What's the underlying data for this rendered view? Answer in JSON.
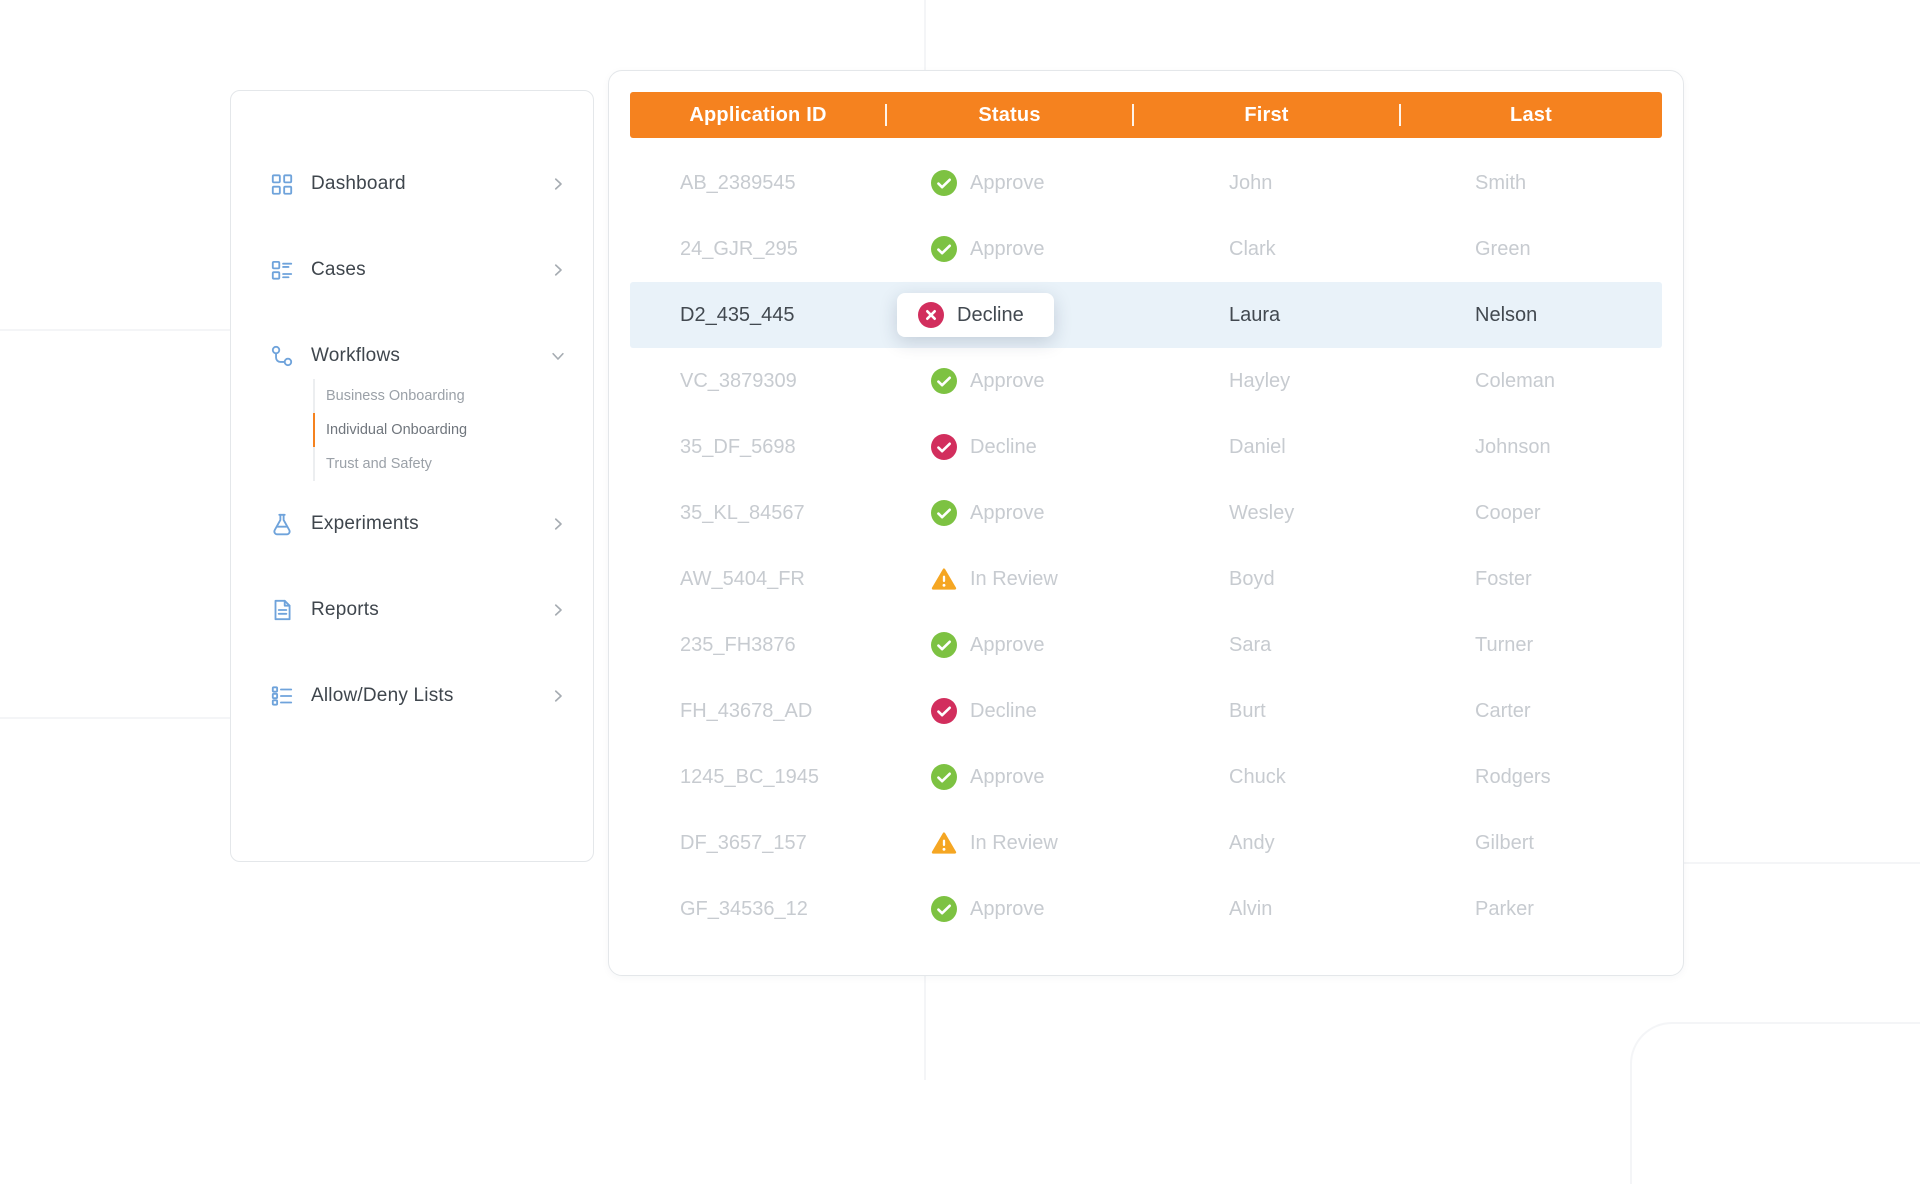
{
  "sidebar": {
    "items": [
      {
        "label": "Dashboard",
        "icon": "dashboard-icon",
        "chevron": "right"
      },
      {
        "label": "Cases",
        "icon": "cases-icon",
        "chevron": "right"
      },
      {
        "label": "Workflows",
        "icon": "workflows-icon",
        "chevron": "down",
        "expanded": true,
        "children": [
          {
            "label": "Business Onboarding",
            "active": false
          },
          {
            "label": "Individual Onboarding",
            "active": true
          },
          {
            "label": "Trust and Safety",
            "active": false
          }
        ]
      },
      {
        "label": "Experiments",
        "icon": "experiments-icon",
        "chevron": "right"
      },
      {
        "label": "Reports",
        "icon": "reports-icon",
        "chevron": "right"
      },
      {
        "label": "Allow/Deny Lists",
        "icon": "allow-deny-icon",
        "chevron": "right"
      }
    ]
  },
  "table": {
    "columns": [
      "Application ID",
      "Status",
      "First",
      "Last"
    ],
    "rows": [
      {
        "application_id": "AB_2389545",
        "status": "Approve",
        "status_type": "approve",
        "icon": "check",
        "first": "John",
        "last": "Smith",
        "selected": false
      },
      {
        "application_id": "24_GJR_295",
        "status": "Approve",
        "status_type": "approve",
        "icon": "check",
        "first": "Clark",
        "last": "Green",
        "selected": false
      },
      {
        "application_id": "D2_435_445",
        "status": "Decline",
        "status_type": "decline",
        "icon": "x",
        "first": "Laura",
        "last": "Nelson",
        "selected": true
      },
      {
        "application_id": "VC_3879309",
        "status": "Approve",
        "status_type": "approve",
        "icon": "check",
        "first": "Hayley",
        "last": "Coleman",
        "selected": false
      },
      {
        "application_id": "35_DF_5698",
        "status": "Decline",
        "status_type": "decline",
        "icon": "check",
        "first": "Daniel",
        "last": "Johnson",
        "selected": false
      },
      {
        "application_id": "35_KL_84567",
        "status": "Approve",
        "status_type": "approve",
        "icon": "check",
        "first": "Wesley",
        "last": "Cooper",
        "selected": false
      },
      {
        "application_id": "AW_5404_FR",
        "status": "In Review",
        "status_type": "review",
        "icon": "warning",
        "first": "Boyd",
        "last": "Foster",
        "selected": false
      },
      {
        "application_id": "235_FH3876",
        "status": "Approve",
        "status_type": "approve",
        "icon": "check",
        "first": "Sara",
        "last": "Turner",
        "selected": false
      },
      {
        "application_id": "FH_43678_AD",
        "status": "Decline",
        "status_type": "decline",
        "icon": "check",
        "first": "Burt",
        "last": "Carter",
        "selected": false
      },
      {
        "application_id": "1245_BC_1945",
        "status": "Approve",
        "status_type": "approve",
        "icon": "check",
        "first": "Chuck",
        "last": "Rodgers",
        "selected": false
      },
      {
        "application_id": "DF_3657_157",
        "status": "In Review",
        "status_type": "review",
        "icon": "warning",
        "first": "Andy",
        "last": "Gilbert",
        "selected": false
      },
      {
        "application_id": "GF_34536_12",
        "status": "Approve",
        "status_type": "approve",
        "icon": "check",
        "first": "Alvin",
        "last": "Parker",
        "selected": false
      }
    ]
  },
  "colors": {
    "accent_orange": "#F5821F",
    "approve_green": "#7DC242",
    "decline_crimson": "#D22E5D",
    "review_orange": "#F5A623",
    "selected_row_bg": "#E9F2F9",
    "faded_text": "#C7CBD0",
    "dark_text": "#424950",
    "sidebar_icon_blue": "#6FA3DB"
  }
}
